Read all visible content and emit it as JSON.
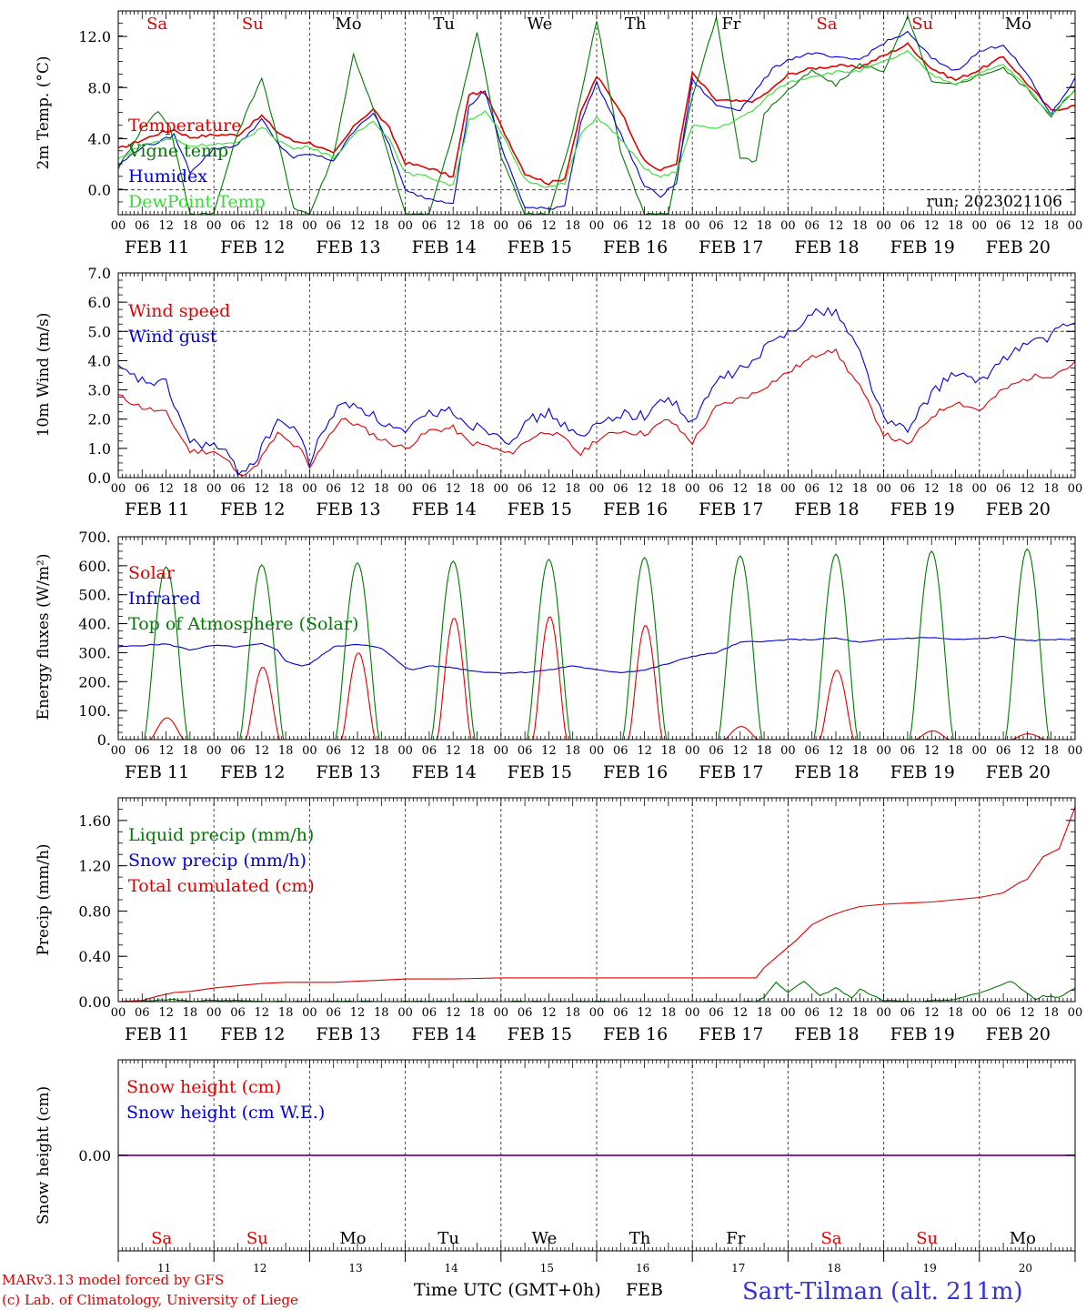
{
  "days": [
    "Sa",
    "Su",
    "Mo",
    "Tu",
    "We",
    "Th",
    "Fr",
    "Sa",
    "Su",
    "Mo"
  ],
  "day_colors": [
    "#e00000",
    "#e00000",
    "#000000",
    "#000000",
    "#000000",
    "#000000",
    "#000000",
    "#e00000",
    "#e00000",
    "#000000"
  ],
  "dates": [
    "FEB 11",
    "FEB 12",
    "FEB 13",
    "FEB 14",
    "FEB 15",
    "FEB 16",
    "FEB 17",
    "FEB 18",
    "FEB 19",
    "FEB 20"
  ],
  "day_numbers": [
    "11",
    "12",
    "13",
    "14",
    "15",
    "16",
    "17",
    "18",
    "19",
    "20"
  ],
  "hour_ticks": [
    "00",
    "06",
    "12",
    "18"
  ],
  "final_tick": "00",
  "x_axis_title": "Time UTC (GMT+0h)",
  "x_axis_month": "FEB",
  "run_label": "run: 2023021106",
  "credit": {
    "line1": "MARv3.13 model forced by GFS",
    "line2": "(c) Lab. of Climatology, University of Liege"
  },
  "station": "Sart-Tilman (alt. 211m)",
  "colors": {
    "red": "#e00000",
    "blue": "#0000dd",
    "green": "#007a00",
    "lightgreen": "#33dd33",
    "purple": "#8000a0"
  },
  "chart_data": [
    {
      "type": "line",
      "ylabel": "2m Temp. (°C)",
      "ylim": [
        -1.95,
        14
      ],
      "yticks": [
        "0.0",
        "4.0",
        "8.0",
        "12.0"
      ],
      "ytick_values": [
        0,
        4,
        8,
        12
      ],
      "dashed_levels": [
        0
      ],
      "x_unit": "hours since FEB 11 00 UTC",
      "series": [
        {
          "name": "Temperature",
          "color": "#e00000",
          "x": [
            0,
            6,
            10,
            14,
            18,
            24,
            30,
            36,
            40,
            44,
            48,
            54,
            60,
            64,
            68,
            72,
            78,
            84,
            88,
            92,
            96,
            102,
            108,
            112,
            116,
            120,
            126,
            132,
            136,
            140,
            144,
            150,
            156,
            160,
            164,
            168,
            174,
            180,
            186,
            192,
            198,
            204,
            210,
            216,
            222,
            228,
            234,
            240
          ],
          "y": [
            3.2,
            3.9,
            4.4,
            4.7,
            4.1,
            4.3,
            4.3,
            5.8,
            4.5,
            3.8,
            3.7,
            2.8,
            5.3,
            6.3,
            4.8,
            2.1,
            1.7,
            1.0,
            7.5,
            7.6,
            5.0,
            1.3,
            0.5,
            0.9,
            6.0,
            8.9,
            6.2,
            2.2,
            1.5,
            2.1,
            9.1,
            7.0,
            6.9,
            7.0,
            7.9,
            9.0,
            9.5,
            9.7,
            9.6,
            10.5,
            11.4,
            9.5,
            8.6,
            9.4,
            10.4,
            8.3,
            6.2,
            6.6
          ]
        },
        {
          "name": "Vigne temp",
          "color": "#007a00",
          "x": [
            0,
            6,
            10,
            13,
            18,
            24,
            30,
            36,
            40,
            44,
            48,
            54,
            59,
            66,
            72,
            78,
            84,
            90,
            96,
            102,
            108,
            114,
            120,
            126,
            132,
            138,
            144,
            150,
            156,
            160,
            162,
            168,
            174,
            180,
            186,
            192,
            198,
            204,
            210,
            216,
            222,
            228,
            234,
            240
          ],
          "y": [
            1.7,
            4.8,
            6.2,
            4.9,
            -1.9,
            -1.8,
            4.5,
            8.8,
            3.9,
            -1.4,
            -1.9,
            2.7,
            10.6,
            4.6,
            -1.9,
            -1.9,
            4.5,
            12.4,
            2.6,
            -1.9,
            -1.9,
            4.5,
            13.3,
            3.0,
            -1.9,
            -1.9,
            7.3,
            13.5,
            2.5,
            2.2,
            6.0,
            7.8,
            9.3,
            8.2,
            9.8,
            9.3,
            13.5,
            8.4,
            8.2,
            9.0,
            9.5,
            7.9,
            5.8,
            7.8
          ]
        },
        {
          "name": "Humidex",
          "color": "#0000dd",
          "x": [
            0,
            6,
            10,
            14,
            18,
            24,
            30,
            36,
            40,
            44,
            48,
            54,
            60,
            64,
            68,
            72,
            78,
            84,
            88,
            92,
            96,
            102,
            108,
            112,
            116,
            120,
            126,
            132,
            136,
            140,
            144,
            150,
            156,
            160,
            164,
            168,
            174,
            180,
            186,
            192,
            198,
            204,
            210,
            216,
            222,
            228,
            234,
            240
          ],
          "y": [
            1.9,
            3.4,
            3.7,
            4.3,
            1.4,
            3.2,
            3.5,
            5.5,
            3.6,
            2.5,
            2.8,
            2.3,
            5.0,
            6.0,
            3.5,
            -0.1,
            -0.7,
            -1.0,
            6.5,
            7.8,
            3.4,
            -1.4,
            -1.5,
            -1.2,
            5.3,
            8.4,
            4.4,
            0.3,
            -0.5,
            0.5,
            8.6,
            6.6,
            6.3,
            7.8,
            9.4,
            10.2,
            10.7,
            10.3,
            10.2,
            11.5,
            12.3,
            10.3,
            9.3,
            10.8,
            11.4,
            9.0,
            5.9,
            8.7
          ]
        },
        {
          "name": "DewPoint Temp",
          "color": "#33dd33",
          "x": [
            0,
            6,
            10,
            14,
            18,
            24,
            30,
            36,
            40,
            44,
            48,
            54,
            60,
            64,
            68,
            72,
            78,
            84,
            88,
            92,
            96,
            102,
            108,
            112,
            116,
            120,
            126,
            132,
            136,
            140,
            144,
            150,
            156,
            160,
            164,
            168,
            174,
            180,
            186,
            192,
            198,
            204,
            210,
            216,
            222,
            228,
            234,
            240
          ],
          "y": [
            2.4,
            3.5,
            3.8,
            4.0,
            3.4,
            3.6,
            3.6,
            4.9,
            3.9,
            3.2,
            3.4,
            2.5,
            4.5,
            5.4,
            4.0,
            1.3,
            1.0,
            0.3,
            5.5,
            6.1,
            4.5,
            0.8,
            0.2,
            0.5,
            4.3,
            5.7,
            4.0,
            1.6,
            1.0,
            1.4,
            5.0,
            4.8,
            5.6,
            6.4,
            7.6,
            8.4,
            8.9,
            9.2,
            9.3,
            10.0,
            10.8,
            9.0,
            8.3,
            9.1,
            9.8,
            8.0,
            5.8,
            7.9
          ]
        }
      ]
    },
    {
      "type": "line",
      "ylabel": "10m Wind (m/s)",
      "ylim": [
        0,
        7
      ],
      "yticks": [
        "0.0",
        "1.0",
        "2.0",
        "3.0",
        "4.0",
        "5.0",
        "6.0",
        "7.0"
      ],
      "ytick_values": [
        0,
        1,
        2,
        3,
        4,
        5,
        6,
        7
      ],
      "dashed_levels": [
        5
      ],
      "x_unit": "hours since FEB 11 00 UTC",
      "series": [
        {
          "name": "Wind speed",
          "color": "#e00000",
          "x": [
            0,
            6,
            12,
            18,
            24,
            28,
            30,
            34,
            40,
            46,
            48,
            52,
            56,
            60,
            66,
            72,
            78,
            84,
            88,
            92,
            98,
            104,
            108,
            112,
            116,
            120,
            126,
            132,
            138,
            144,
            150,
            156,
            160,
            162,
            168,
            174,
            178,
            180,
            186,
            192,
            198,
            204,
            210,
            216,
            222,
            228,
            232,
            234,
            240
          ],
          "y": [
            2.8,
            2.4,
            2.2,
            0.9,
            0.9,
            0.5,
            0.1,
            0.3,
            1.5,
            0.9,
            0.3,
            1.3,
            2.0,
            1.8,
            1.3,
            1.0,
            1.6,
            1.7,
            1.2,
            1.1,
            0.8,
            1.4,
            1.6,
            1.3,
            0.8,
            1.3,
            1.6,
            1.5,
            2.0,
            1.2,
            2.4,
            2.7,
            2.9,
            3.1,
            3.6,
            4.1,
            4.4,
            4.3,
            3.1,
            1.5,
            1.1,
            2.1,
            2.6,
            2.3,
            3.0,
            3.4,
            3.5,
            3.5,
            3.9
          ]
        },
        {
          "name": "Wind gust",
          "color": "#0000dd",
          "x": [
            0,
            6,
            12,
            18,
            24,
            28,
            30,
            34,
            40,
            46,
            48,
            52,
            56,
            60,
            66,
            72,
            78,
            84,
            88,
            92,
            98,
            104,
            108,
            112,
            116,
            120,
            126,
            132,
            138,
            144,
            150,
            156,
            160,
            162,
            168,
            174,
            178,
            180,
            186,
            192,
            198,
            204,
            210,
            216,
            222,
            228,
            232,
            234,
            240
          ],
          "y": [
            3.7,
            3.3,
            3.2,
            1.2,
            1.1,
            0.7,
            0.2,
            0.5,
            2.0,
            1.4,
            0.5,
            1.8,
            2.5,
            2.5,
            1.9,
            1.5,
            2.2,
            2.3,
            1.8,
            1.7,
            1.3,
            2.0,
            2.2,
            1.8,
            1.3,
            1.8,
            2.2,
            2.1,
            2.8,
            1.8,
            3.3,
            3.7,
            4.0,
            4.4,
            5.0,
            5.6,
            5.7,
            5.7,
            4.3,
            2.0,
            1.6,
            2.9,
            3.6,
            3.2,
            4.1,
            4.6,
            4.7,
            4.9,
            5.3
          ]
        }
      ]
    },
    {
      "type": "line",
      "ylabel": "Energy fluxes (W/m²)",
      "ylim": [
        0,
        700
      ],
      "yticks": [
        "0.",
        "100.",
        "200.",
        "300.",
        "400.",
        "500.",
        "600.",
        "700."
      ],
      "ytick_values": [
        0,
        100,
        200,
        300,
        400,
        500,
        600,
        700
      ],
      "dashed_levels": [],
      "x_unit": "hours since FEB 11 00 UTC",
      "daylight_hours": [
        7.5,
        17
      ],
      "series": [
        {
          "name": "Solar",
          "color": "#e00000",
          "daily_peaks": [
            75,
            250,
            300,
            420,
            425,
            395,
            45,
            240,
            30,
            20
          ]
        },
        {
          "name": "Infrared",
          "color": "#0000dd",
          "x": [
            0,
            12,
            18,
            24,
            30,
            36,
            40,
            42,
            46,
            48,
            54,
            60,
            66,
            72,
            74,
            78,
            84,
            90,
            96,
            102,
            108,
            114,
            120,
            126,
            132,
            138,
            144,
            150,
            156,
            160,
            162,
            168,
            174,
            180,
            186,
            192,
            198,
            204,
            210,
            216,
            222,
            228,
            234,
            240
          ],
          "y": [
            320,
            330,
            310,
            325,
            320,
            330,
            310,
            270,
            255,
            260,
            320,
            330,
            315,
            250,
            240,
            255,
            248,
            235,
            230,
            232,
            240,
            255,
            240,
            232,
            240,
            262,
            288,
            300,
            335,
            340,
            338,
            345,
            345,
            350,
            335,
            345,
            350,
            352,
            345,
            348,
            355,
            340,
            346,
            345
          ]
        },
        {
          "name": "Top of Atmosphere (Solar)",
          "color": "#007a00",
          "daily_peaks": [
            596,
            603,
            610,
            616,
            622,
            628,
            634,
            640,
            650,
            658
          ]
        }
      ]
    },
    {
      "type": "line",
      "ylabel": "Precip (mm/h)",
      "ylim": [
        0,
        1.8
      ],
      "yticks": [
        "0.00",
        "0.40",
        "0.80",
        "1.20",
        "1.60"
      ],
      "ytick_values": [
        0,
        0.4,
        0.8,
        1.2,
        1.6
      ],
      "dashed_levels": [],
      "x_unit": "hours since FEB 11 00 UTC",
      "series": [
        {
          "name": "Liquid precip (mm/h)",
          "color": "#007a00",
          "x": [
            0,
            10,
            14,
            18,
            22,
            30,
            40,
            48,
            160,
            162,
            165,
            168,
            172,
            176,
            180,
            184,
            186,
            192,
            200,
            210,
            216,
            224,
            230,
            232,
            236,
            240
          ],
          "y": [
            0,
            0.01,
            0.02,
            0,
            0.01,
            0.01,
            0,
            0,
            0,
            0.04,
            0.17,
            0.08,
            0.18,
            0.05,
            0.12,
            0.03,
            0.11,
            0.01,
            0,
            0.02,
            0.08,
            0.18,
            0.02,
            0.05,
            0.04,
            0.12
          ]
        },
        {
          "name": "Snow precip (mm/h)",
          "color": "#0000dd",
          "x": [
            0,
            240
          ],
          "y": [
            0,
            0
          ]
        },
        {
          "name": "Total cumulated (cm)",
          "color": "#e00000",
          "x": [
            0,
            6,
            10,
            14,
            18,
            24,
            30,
            36,
            42,
            48,
            54,
            60,
            66,
            72,
            84,
            96,
            108,
            120,
            132,
            144,
            150,
            156,
            160,
            162,
            166,
            170,
            174,
            178,
            182,
            186,
            192,
            198,
            204,
            210,
            216,
            222,
            226,
            228,
            232,
            236,
            240
          ],
          "y": [
            0,
            0.01,
            0.05,
            0.08,
            0.09,
            0.12,
            0.14,
            0.16,
            0.17,
            0.17,
            0.17,
            0.18,
            0.19,
            0.2,
            0.2,
            0.21,
            0.21,
            0.21,
            0.21,
            0.21,
            0.21,
            0.21,
            0.21,
            0.3,
            0.42,
            0.54,
            0.68,
            0.75,
            0.8,
            0.84,
            0.86,
            0.87,
            0.88,
            0.9,
            0.92,
            0.96,
            1.05,
            1.08,
            1.28,
            1.35,
            1.72
          ]
        }
      ]
    },
    {
      "type": "line",
      "ylabel": "Snow height (cm)",
      "ylim": [
        -1,
        1
      ],
      "yticks": [
        "0.00"
      ],
      "ytick_values": [
        0
      ],
      "dashed_levels": [],
      "x_unit": "hours since FEB 11 00 UTC",
      "series": [
        {
          "name": "Snow height (cm)",
          "color": "#e00000",
          "x": [
            0,
            240
          ],
          "y": [
            0,
            0
          ]
        },
        {
          "name": "Snow height (cm W.E.)",
          "color": "#0000dd",
          "x": [
            0,
            240
          ],
          "y": [
            0,
            0
          ]
        }
      ]
    }
  ]
}
